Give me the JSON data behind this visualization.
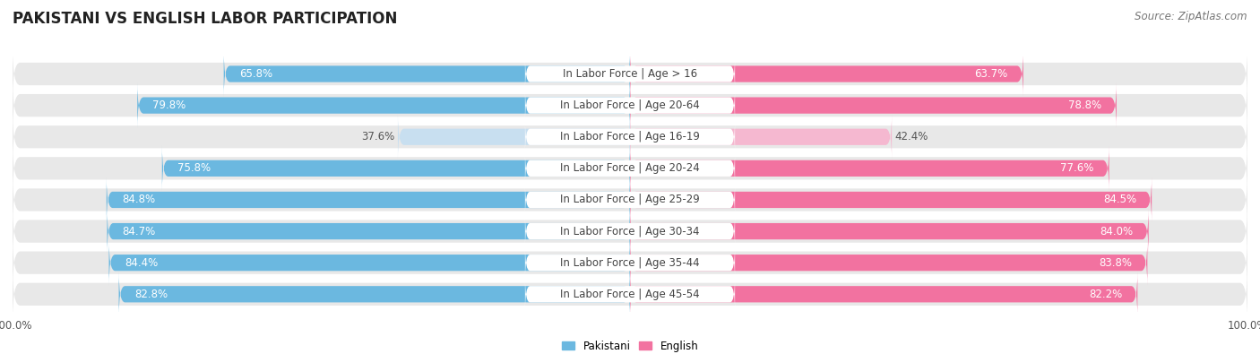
{
  "title": "PAKISTANI VS ENGLISH LABOR PARTICIPATION",
  "source": "Source: ZipAtlas.com",
  "categories": [
    "In Labor Force | Age > 16",
    "In Labor Force | Age 20-64",
    "In Labor Force | Age 16-19",
    "In Labor Force | Age 20-24",
    "In Labor Force | Age 25-29",
    "In Labor Force | Age 30-34",
    "In Labor Force | Age 35-44",
    "In Labor Force | Age 45-54"
  ],
  "pakistani_values": [
    65.8,
    79.8,
    37.6,
    75.8,
    84.8,
    84.7,
    84.4,
    82.8
  ],
  "english_values": [
    63.7,
    78.8,
    42.4,
    77.6,
    84.5,
    84.0,
    83.8,
    82.2
  ],
  "pakistani_color_dark": "#6BB8E0",
  "pakistani_color_light": "#C8DFF0",
  "english_color_dark": "#F272A0",
  "english_color_light": "#F5B8D0",
  "row_bg_color": "#E8E8E8",
  "title_fontsize": 12,
  "label_fontsize": 8.5,
  "tick_fontsize": 8.5,
  "source_fontsize": 8.5,
  "legend_fontsize": 8.5
}
